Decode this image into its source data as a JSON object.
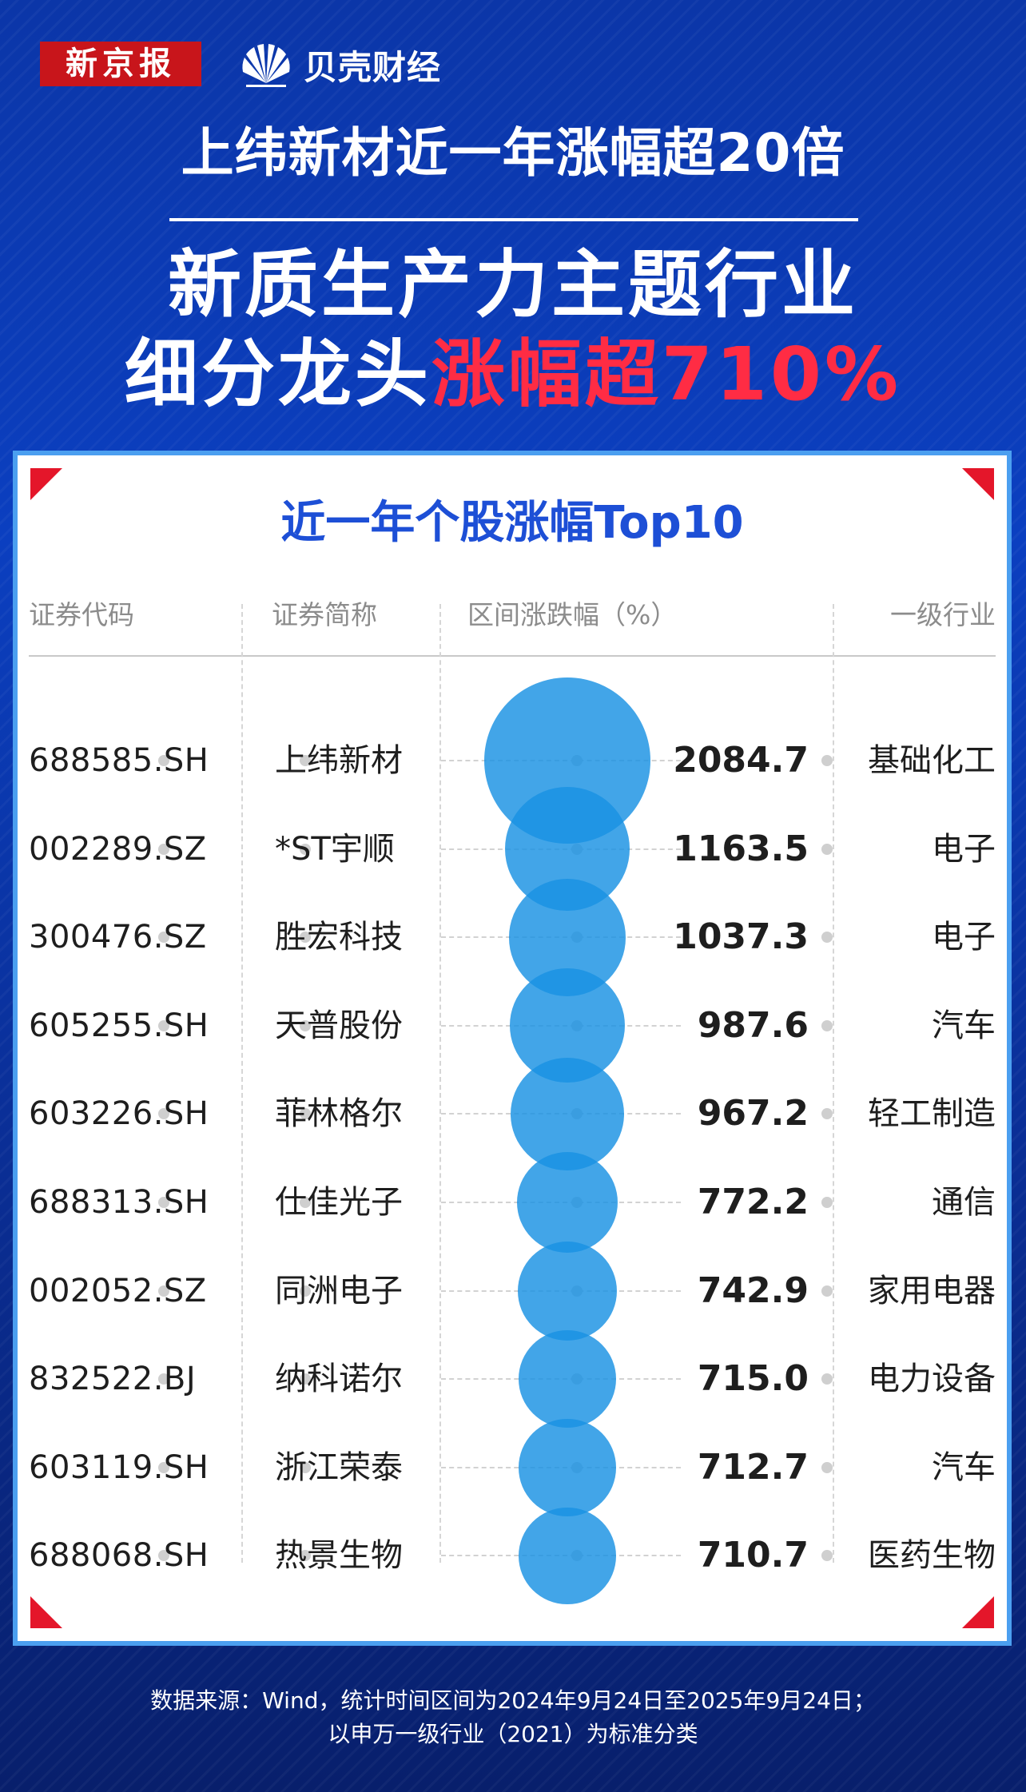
{
  "brand": {
    "xjb_logo_text": "新京报",
    "beike_logo_text": "贝壳财经"
  },
  "headline": {
    "line1": "上纬新材近一年涨幅超20倍",
    "line2": "新质生产力主题行业",
    "line3_prefix": "细分龙头",
    "line3_highlight": "涨幅超710%"
  },
  "colors": {
    "background": "#0b3fc0",
    "highlight_red": "#ff2c44",
    "bubble_blue": "#1891e3",
    "title_blue": "#1d4fd6",
    "corner_red": "#e4162a"
  },
  "chart_data": {
    "type": "table",
    "title": "近一年个股涨幅Top10",
    "columns": [
      "证券代码",
      "证券简称",
      "区间涨跌幅（%）",
      "一级行业"
    ],
    "rows": [
      {
        "code": "688585.SH",
        "name": "上纬新材",
        "change": "2084.7",
        "industry": "基础化工",
        "value": 2084.7
      },
      {
        "code": "002289.SZ",
        "name": "*ST宇顺",
        "change": "1163.5",
        "industry": "电子",
        "value": 1163.5
      },
      {
        "code": "300476.SZ",
        "name": "胜宏科技",
        "change": "1037.3",
        "industry": "电子",
        "value": 1037.3
      },
      {
        "code": "605255.SH",
        "name": "天普股份",
        "change": "987.6",
        "industry": "汽车",
        "value": 987.6
      },
      {
        "code": "603226.SH",
        "name": "菲林格尔",
        "change": "967.2",
        "industry": "轻工制造",
        "value": 967.2
      },
      {
        "code": "688313.SH",
        "name": "仕佳光子",
        "change": "772.2",
        "industry": "通信",
        "value": 772.2
      },
      {
        "code": "002052.SZ",
        "name": "同洲电子",
        "change": "742.9",
        "industry": "家用电器",
        "value": 742.9
      },
      {
        "code": "832522.BJ",
        "name": "纳科诺尔",
        "change": "715.0",
        "industry": "电力设备",
        "value": 715.0
      },
      {
        "code": "603119.SH",
        "name": "浙江荣泰",
        "change": "712.7",
        "industry": "汽车",
        "value": 712.7
      },
      {
        "code": "688068.SH",
        "name": "热景生物",
        "change": "710.7",
        "industry": "医药生物",
        "value": 710.7
      }
    ],
    "encoding": "bubble area proportional to 区间涨跌幅"
  },
  "footer": {
    "line1": "数据来源：Wind，统计时间区间为2024年9月24日至2025年9月24日；",
    "line2": "以申万一级行业（2021）为标准分类"
  }
}
